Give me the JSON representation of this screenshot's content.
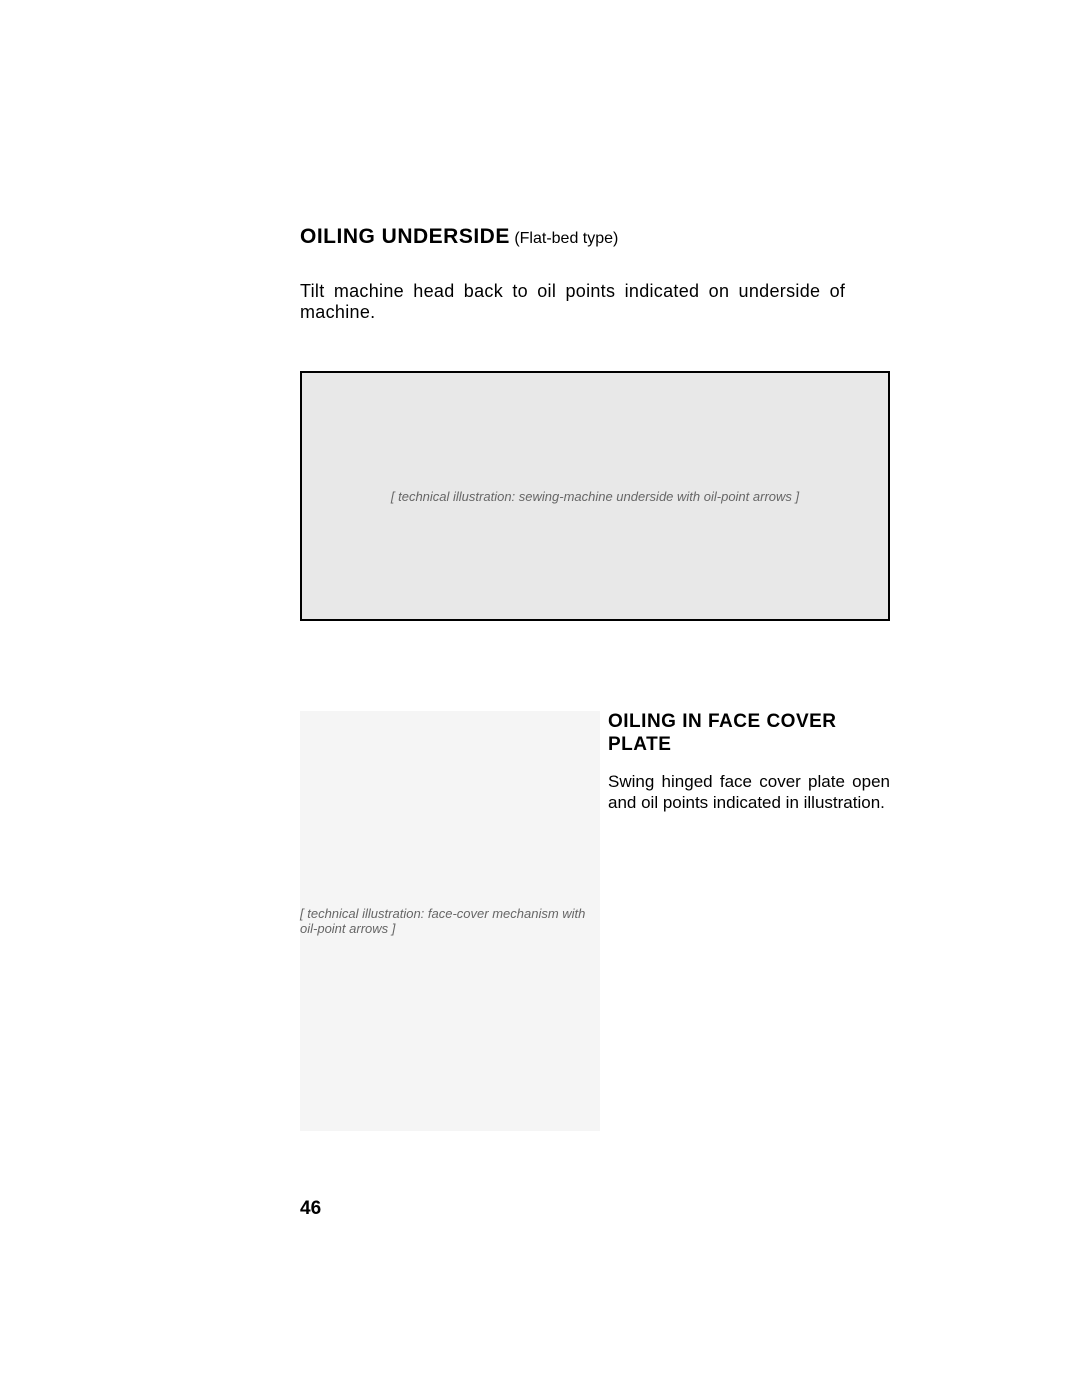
{
  "section1": {
    "heading_main": "OILING UNDERSIDE",
    "heading_sub": "(Flat-bed type)",
    "body": "Tilt machine head back to oil points indicated on underside of machine.",
    "figure_alt": "[ technical illustration: sewing-machine underside with oil-point arrows ]"
  },
  "section2": {
    "heading": "OILING IN FACE COVER PLATE",
    "body": "Swing hinged face cover plate open and oil points indicated in illustration.",
    "figure_alt": "[ technical illustration: face-cover mechanism with oil-point arrows ]"
  },
  "page_number": "46"
}
